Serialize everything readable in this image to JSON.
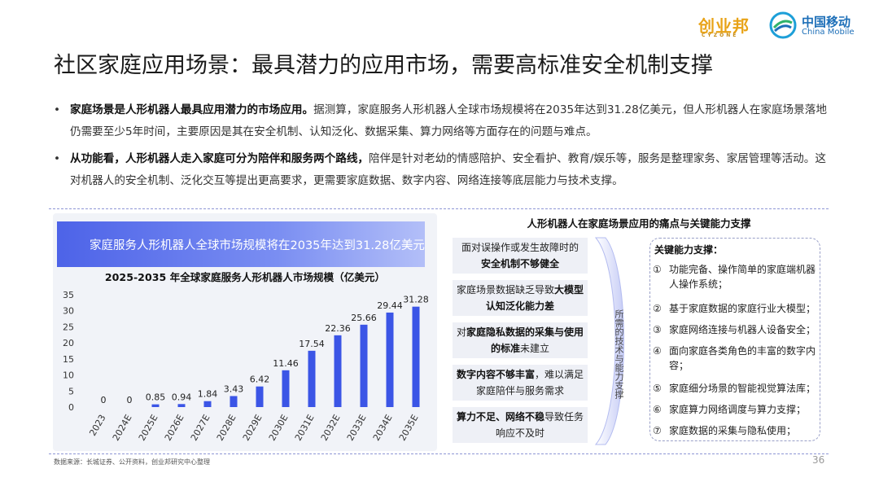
{
  "header": {
    "logo_cyzone": "创业邦",
    "logo_cyzone_sub": "CYZONE",
    "logo_cm": "中国移动",
    "logo_cm_en": "China Mobile",
    "title": "社区家庭应用场景：最具潜力的应用市场，需要高标准安全机制支撑"
  },
  "bullets": [
    {
      "bold": "家庭场景是人形机器人最具应用潜力的市场应用。",
      "text": "据测算，家庭服务人形机器人全球市场规模将在2035年达到31.28亿美元，但人形机器人在家庭场景落地仍需要至少5年时间，主要原因是其在安全机制、认知泛化、数据采集、算力网络等方面存在的问题与难点。"
    },
    {
      "bold": "从功能看，人形机器人走入家庭可分为陪伴和服务两个路线，",
      "text": "陪伴是针对老幼的情感陪护、安全看护、教育/娱乐等，服务是整理家务、家居管理等活动。这对机器人的安全机制、泛化交互等提出更高要求，更需要家庭数据、数字内容、网络连接等底层能力与技术支撑。"
    }
  ],
  "chart_banner": "家庭服务人形机器人全球市场规模将在2035年达到31.28亿美元",
  "chart_data": {
    "type": "bar",
    "title": "2025-2035 年全球家庭服务人形机器人市场规模（亿美元）",
    "categories": [
      "2023",
      "2024E",
      "2025E",
      "2026E",
      "2027E",
      "2028E",
      "2029E",
      "2030E",
      "2031E",
      "2032E",
      "2033E",
      "2034E",
      "2035E"
    ],
    "values": [
      0,
      0,
      0.85,
      0.94,
      1.84,
      3.43,
      6.42,
      11.46,
      17.54,
      22.36,
      25.66,
      29.44,
      31.28
    ],
    "value_labels": [
      "0",
      "0",
      "0.85",
      "0.94",
      "1.84",
      "3.43",
      "6.42",
      "11.46",
      "17.54",
      "22.36",
      "25.66",
      "29.44",
      "31.28"
    ],
    "yticks": [
      "0",
      "5",
      "10",
      "15",
      "20",
      "25",
      "30",
      "35"
    ],
    "ylim": [
      0,
      35
    ],
    "bar_color": "#3b55e6",
    "grid": false
  },
  "right_panel": {
    "title": "人形机器人在家庭场景应用的痛点与关键能力支撑",
    "pain_points": [
      {
        "pre": "面对误操作或发生故障时的",
        "bold": "安全机制不够健全",
        "post": ""
      },
      {
        "pre": "家庭场景数据缺乏导致",
        "bold": "大模型认知泛化能力差",
        "post": ""
      },
      {
        "pre": "对",
        "bold": "家庭隐私数据的采集与使用的标准",
        "post": "未建立"
      },
      {
        "pre": "",
        "bold": "数字内容不够丰富",
        "post": "，难以满足家庭陪伴与服务需求"
      },
      {
        "pre": "",
        "bold": "算力不足、网络不稳",
        "post": "导致任务响应不及时"
      }
    ],
    "vertical_label": "所需的技术与能力支撑",
    "key_heading": "关键能力支撑：",
    "key_items": [
      {
        "num": "①",
        "text": "功能完备、操作简单的家庭端机器人操作系统；"
      },
      {
        "num": "②",
        "text": "基于家庭数据的家庭行业大模型；"
      },
      {
        "num": "③",
        "text": "家庭网络连接与机器人设备安全；"
      },
      {
        "num": "④",
        "text": "面向家庭各类角色的丰富的数字内容；"
      },
      {
        "num": "⑤",
        "text": "家庭细分场景的智能视觉算法库；"
      },
      {
        "num": "⑥",
        "text": "家庭算力网络调度与算力支撑；"
      },
      {
        "num": "⑦",
        "text": "家庭数据的采集与隐私使用；"
      }
    ]
  },
  "footer": {
    "source": "数据来源：长城证券、公开资料，创业邦研究中心整理",
    "page": "36"
  },
  "colors": {
    "accent": "#3b55e6",
    "brand_orange": "#e8a317",
    "brand_blue": "#1d6fb8"
  }
}
